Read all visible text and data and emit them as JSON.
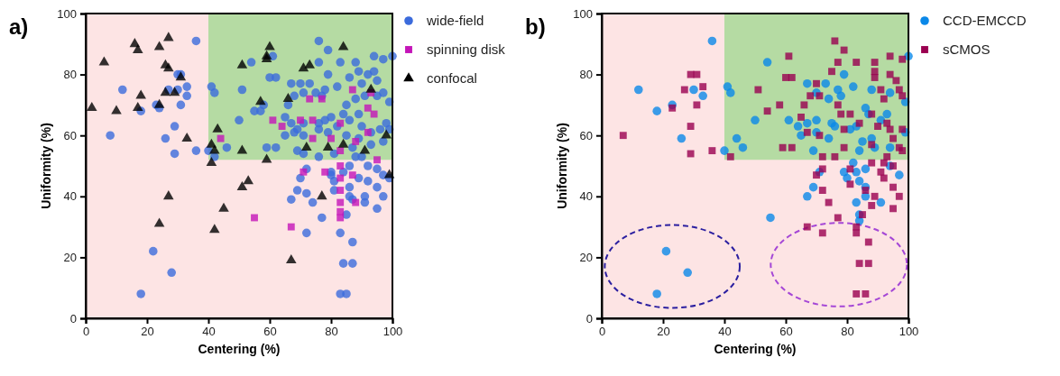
{
  "chart_data": [
    {
      "type": "scatter",
      "title": "a)",
      "xlabel": "Centering (%)",
      "ylabel": "Uniformity (%)",
      "xlim": [
        0,
        100
      ],
      "ylim": [
        0,
        100
      ],
      "xticks": [
        0,
        20,
        40,
        60,
        80,
        100
      ],
      "yticks": [
        0,
        20,
        40,
        60,
        80,
        100
      ],
      "legend": "top right",
      "bands": [
        {
          "axis": "y",
          "from": 0,
          "to": 100,
          "color": "#b5dba3"
        },
        {
          "axis": "x",
          "from": 0,
          "to": 40,
          "color": "#fde4e4"
        },
        {
          "axis": "y",
          "from": 0,
          "to": 52,
          "color": "#fde4e4"
        }
      ],
      "series": [
        {
          "name": "wide-field",
          "color": "#3b6bdc",
          "marker": "circle",
          "x": [
            36,
            30,
            31,
            12,
            27,
            30,
            33,
            33,
            23,
            24,
            18,
            31,
            29,
            8,
            26,
            36,
            29,
            40,
            41,
            42,
            46,
            42,
            22,
            28,
            18,
            76,
            79,
            94,
            97,
            100,
            54,
            61,
            76,
            83,
            88,
            89,
            79,
            92,
            94,
            60,
            62,
            67,
            70,
            73,
            78,
            82,
            86,
            90,
            95,
            51,
            68,
            71,
            75,
            77,
            85,
            88,
            91,
            95,
            97,
            99,
            55,
            57,
            58,
            66,
            50,
            65,
            67,
            69,
            71,
            65,
            68,
            71,
            76,
            78,
            80,
            76,
            79,
            82,
            84,
            86,
            89,
            90,
            93,
            96,
            98,
            99,
            85,
            89,
            93,
            97,
            59,
            62,
            69,
            71,
            76,
            81,
            88,
            90,
            87,
            72,
            70,
            80,
            80,
            84,
            86,
            92,
            95,
            97,
            99,
            69,
            72,
            67,
            74,
            81,
            86,
            89,
            92,
            95,
            81,
            86,
            91,
            87,
            91,
            97,
            95,
            77,
            85,
            72,
            83,
            87,
            84,
            87,
            83,
            85
          ],
          "values": [
            91,
            80,
            80,
            75,
            75,
            75,
            76,
            73,
            70,
            69,
            68,
            70,
            63,
            60,
            59,
            55,
            54,
            55,
            76,
            74,
            56,
            53,
            22,
            15,
            8,
            91,
            88,
            86,
            85,
            86,
            84,
            86,
            84,
            84,
            84,
            81,
            80,
            80,
            81,
            79,
            79,
            77,
            77,
            77,
            75,
            76,
            79,
            77,
            78,
            75,
            73,
            74,
            74,
            73,
            70,
            72,
            73,
            73,
            74,
            71,
            68,
            68,
            70,
            70,
            65,
            66,
            64,
            62,
            64,
            60,
            61,
            60,
            64,
            65,
            66,
            62,
            61,
            63,
            67,
            65,
            67,
            63,
            61,
            62,
            64,
            62,
            60,
            59,
            57,
            58,
            56,
            56,
            55,
            54,
            53,
            54,
            53,
            53,
            56,
            49,
            46,
            47,
            48,
            48,
            50,
            50,
            49,
            47,
            46,
            42,
            41,
            39,
            38,
            42,
            43,
            46,
            45,
            43,
            45,
            40,
            40,
            39,
            38,
            40,
            36,
            33,
            34,
            28,
            28,
            25,
            18,
            18,
            8,
            8
          ]
        },
        {
          "name": "spinning disk",
          "color": "#c414b8",
          "marker": "square",
          "x": [
            44,
            87,
            93,
            73,
            77,
            92,
            61,
            64,
            70,
            74,
            74,
            80,
            83,
            88,
            92,
            94,
            83,
            95,
            71,
            78,
            83,
            83,
            87,
            83,
            83,
            88,
            83,
            83,
            55,
            67
          ],
          "values": [
            59,
            75,
            74,
            72,
            72,
            69,
            65,
            63,
            65,
            65,
            59,
            59,
            64,
            58,
            61,
            67,
            55,
            52,
            48,
            48,
            50,
            46,
            47,
            42,
            38,
            38,
            35,
            33,
            33,
            30
          ]
        },
        {
          "name": "confocal",
          "color": "#000000",
          "marker": "triangle",
          "x": [
            27,
            16,
            17,
            24,
            6,
            26,
            27,
            31,
            18,
            26,
            29,
            2,
            10,
            17,
            24,
            33,
            43,
            41,
            42,
            41,
            27,
            45,
            24,
            42,
            60,
            59,
            59,
            51,
            71,
            73,
            84,
            57,
            66,
            51,
            72,
            79,
            59,
            84,
            91,
            98,
            93,
            99,
            53,
            51,
            77,
            67
          ],
          "values": [
            92,
            90,
            88,
            89,
            84,
            83,
            82,
            79,
            73,
            74,
            74,
            69,
            68,
            69,
            70,
            59,
            62,
            57,
            55,
            51,
            40,
            36,
            31,
            29,
            89,
            86,
            85,
            83,
            82,
            83,
            89,
            71,
            72,
            55,
            56,
            56,
            52,
            57,
            55,
            60,
            75,
            47,
            45,
            43,
            40,
            19
          ]
        }
      ]
    },
    {
      "type": "scatter",
      "title": "b)",
      "xlabel": "Centering (%)",
      "ylabel": "Uniformity (%)",
      "xlim": [
        0,
        100
      ],
      "ylim": [
        0,
        100
      ],
      "xticks": [
        0,
        20,
        40,
        60,
        80,
        100
      ],
      "yticks": [
        0,
        20,
        40,
        60,
        80,
        100
      ],
      "legend": "top right",
      "bands": [
        {
          "axis": "y",
          "from": 0,
          "to": 100,
          "color": "#b5dba3"
        },
        {
          "axis": "x",
          "from": 0,
          "to": 40,
          "color": "#fde4e4"
        },
        {
          "axis": "y",
          "from": 0,
          "to": 52,
          "color": "#fde4e4"
        }
      ],
      "series": [
        {
          "name": "CCD-EMCCD",
          "color": "#0a88e8",
          "marker": "circle",
          "x": [
            36,
            12,
            30,
            33,
            18,
            23,
            26,
            40,
            41,
            42,
            50,
            44,
            46,
            21,
            28,
            18,
            54,
            79,
            100,
            67,
            70,
            73,
            74,
            77,
            78,
            82,
            88,
            94,
            99,
            61,
            64,
            67,
            70,
            75,
            76,
            65,
            70,
            74,
            81,
            83,
            86,
            87,
            85,
            88,
            89,
            84,
            91,
            93,
            99,
            94,
            69,
            82,
            83,
            79,
            80,
            86,
            94,
            97,
            71,
            69,
            67,
            84,
            86,
            86,
            91,
            83,
            84,
            84,
            55
          ],
          "values": [
            91,
            75,
            75,
            73,
            68,
            70,
            59,
            55,
            76,
            74,
            65,
            59,
            56,
            22,
            15,
            8,
            84,
            80,
            86,
            77,
            74,
            77,
            72,
            75,
            73,
            76,
            75,
            74,
            71,
            65,
            63,
            64,
            65,
            64,
            63,
            60,
            61,
            59,
            62,
            63,
            69,
            67,
            58,
            59,
            56,
            55,
            65,
            67,
            61,
            56,
            55,
            51,
            48,
            48,
            46,
            49,
            50,
            47,
            48,
            43,
            40,
            45,
            43,
            40,
            38,
            38,
            34,
            32,
            33
          ]
        },
        {
          "name": "sCMOS",
          "color": "#9a0050",
          "marker": "square",
          "x": [
            29,
            31,
            27,
            33,
            31,
            23,
            29,
            7,
            29,
            36,
            42,
            76,
            79,
            61,
            77,
            83,
            89,
            94,
            98,
            60,
            62,
            75,
            89,
            94,
            51,
            70,
            68,
            71,
            77,
            89,
            91,
            96,
            97,
            98,
            92,
            54,
            58,
            66,
            65,
            67,
            71,
            78,
            81,
            79,
            84,
            88,
            90,
            93,
            94,
            98,
            95,
            97,
            59,
            62,
            72,
            76,
            79,
            88,
            93,
            98,
            72,
            70,
            81,
            88,
            92,
            91,
            95,
            72,
            74,
            81,
            86,
            92,
            95,
            89,
            97,
            88,
            95,
            77,
            85,
            67,
            72,
            83,
            83,
            87,
            84,
            87,
            83,
            86
          ],
          "values": [
            80,
            80,
            75,
            76,
            70,
            69,
            63,
            60,
            54,
            55,
            53,
            91,
            88,
            86,
            84,
            84,
            84,
            86,
            85,
            79,
            79,
            81,
            81,
            80,
            75,
            77,
            73,
            73,
            70,
            79,
            75,
            78,
            75,
            73,
            72,
            68,
            70,
            70,
            66,
            61,
            60,
            67,
            67,
            62,
            64,
            67,
            63,
            64,
            62,
            62,
            59,
            56,
            56,
            56,
            53,
            53,
            56,
            57,
            53,
            55,
            49,
            47,
            49,
            51,
            51,
            48,
            50,
            42,
            38,
            44,
            42,
            46,
            43,
            40,
            40,
            37,
            36,
            33,
            34,
            30,
            28,
            30,
            28,
            25,
            18,
            18,
            8,
            8
          ]
        }
      ]
    }
  ]
}
